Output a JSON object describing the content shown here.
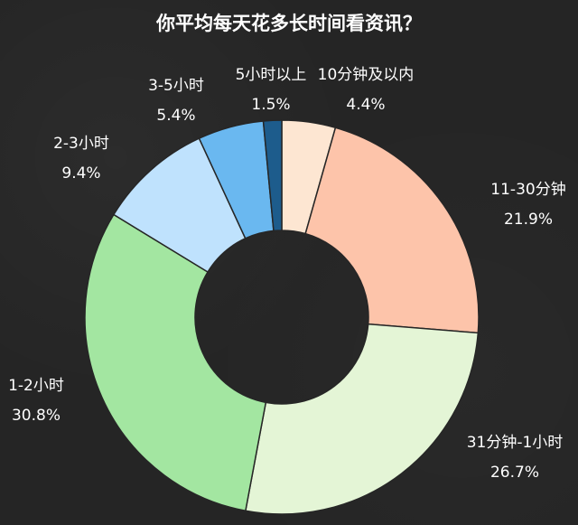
{
  "chart_data": {
    "type": "pie",
    "title": "你平均每天花多长时间看资讯？",
    "categories": [
      "10分钟及以内",
      "11-30分钟",
      "31分钟-1小时",
      "1-2小时",
      "2-3小时",
      "3-5小时",
      "5小时以上"
    ],
    "values": [
      4.4,
      21.9,
      26.7,
      30.8,
      9.4,
      5.4,
      1.5
    ],
    "value_labels": [
      "4.4%",
      "21.9%",
      "26.7%",
      "30.8%",
      "9.4%",
      "5.4%",
      "1.5%"
    ],
    "colors": [
      "#fde6d2",
      "#fdc4aa",
      "#e4f5d6",
      "#a3e6a1",
      "#bfe2fd",
      "#6ab8f0",
      "#1d5c8c"
    ],
    "donut": true,
    "start_angle": "top",
    "direction": "clockwise",
    "legend": "none"
  }
}
